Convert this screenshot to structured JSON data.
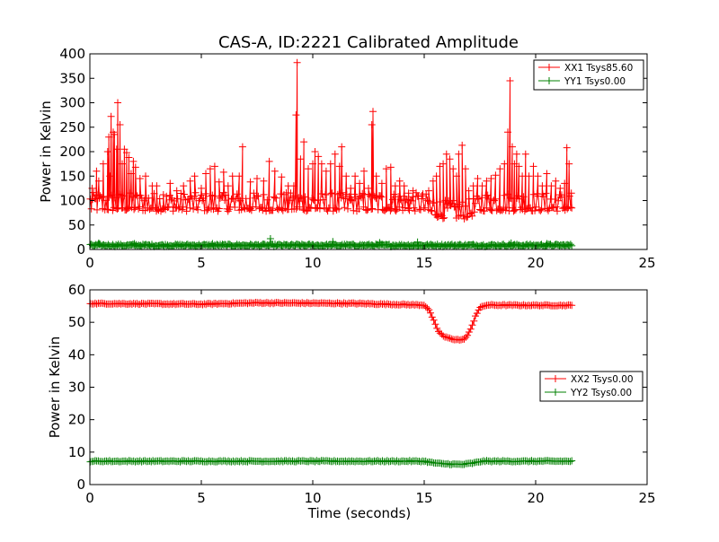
{
  "figure": {
    "title": "CAS-A, ID:2221 Calibrated Amplitude"
  },
  "chart_data": [
    {
      "type": "line",
      "title": "CAS-A, ID:2221 Calibrated Amplitude",
      "xlabel": "",
      "ylabel": "Power in Kelvin",
      "xlim": [
        0,
        25
      ],
      "ylim": [
        0,
        400
      ],
      "xticks": [
        0,
        5,
        10,
        15,
        20,
        25
      ],
      "yticks": [
        0,
        50,
        100,
        150,
        200,
        250,
        300,
        350,
        400
      ],
      "grid": false,
      "legend": "top-right",
      "marker": "plus",
      "series": [
        {
          "name": "XX1 Tsys85.60",
          "color": "#ff0000",
          "baseline": [
            [
              0,
              78
            ],
            [
              15,
              78
            ],
            [
              15.5,
              66
            ],
            [
              16,
              62
            ],
            [
              16.8,
              62
            ],
            [
              17.3,
              70
            ],
            [
              17.6,
              78
            ],
            [
              21.6,
              78
            ]
          ],
          "spikes": [
            [
              0.1,
              125
            ],
            [
              0.3,
              160
            ],
            [
              0.4,
              140
            ],
            [
              0.6,
              175
            ],
            [
              0.8,
              200
            ],
            [
              0.85,
              230
            ],
            [
              0.9,
              150
            ],
            [
              0.95,
              272
            ],
            [
              1.05,
              240
            ],
            [
              1.1,
              235
            ],
            [
              1.2,
              205
            ],
            [
              1.25,
              300
            ],
            [
              1.35,
              255
            ],
            [
              1.45,
              175
            ],
            [
              1.55,
              205
            ],
            [
              1.65,
              198
            ],
            [
              1.75,
              188
            ],
            [
              1.85,
              155
            ],
            [
              1.95,
              180
            ],
            [
              2.05,
              168
            ],
            [
              2.25,
              145
            ],
            [
              2.5,
              150
            ],
            [
              2.8,
              130
            ],
            [
              3.0,
              130
            ],
            [
              3.3,
              112
            ],
            [
              3.6,
              135
            ],
            [
              3.9,
              120
            ],
            [
              4.2,
              130
            ],
            [
              4.5,
              140
            ],
            [
              4.7,
              150
            ],
            [
              5.0,
              125
            ],
            [
              5.2,
              155
            ],
            [
              5.4,
              165
            ],
            [
              5.6,
              170
            ],
            [
              5.8,
              138
            ],
            [
              6.0,
              158
            ],
            [
              6.2,
              130
            ],
            [
              6.4,
              150
            ],
            [
              6.7,
              150
            ],
            [
              6.85,
              210
            ],
            [
              7.2,
              138
            ],
            [
              7.5,
              145
            ],
            [
              7.8,
              140
            ],
            [
              8.05,
              180
            ],
            [
              8.3,
              160
            ],
            [
              8.6,
              148
            ],
            [
              8.9,
              130
            ],
            [
              9.15,
              130
            ],
            [
              9.25,
              275
            ],
            [
              9.3,
              382
            ],
            [
              9.45,
              185
            ],
            [
              9.6,
              220
            ],
            [
              9.8,
              165
            ],
            [
              10.0,
              175
            ],
            [
              10.1,
              200
            ],
            [
              10.25,
              190
            ],
            [
              10.4,
              175
            ],
            [
              10.6,
              160
            ],
            [
              10.8,
              175
            ],
            [
              11.0,
              195
            ],
            [
              11.2,
              170
            ],
            [
              11.3,
              210
            ],
            [
              11.5,
              150
            ],
            [
              11.7,
              125
            ],
            [
              11.9,
              150
            ],
            [
              12.1,
              135
            ],
            [
              12.3,
              160
            ],
            [
              12.5,
              125
            ],
            [
              12.65,
              255
            ],
            [
              12.7,
              282
            ],
            [
              12.85,
              150
            ],
            [
              13.1,
              135
            ],
            [
              13.3,
              165
            ],
            [
              13.5,
              168
            ],
            [
              13.7,
              130
            ],
            [
              13.9,
              140
            ],
            [
              14.1,
              130
            ],
            [
              14.3,
              115
            ],
            [
              14.5,
              120
            ],
            [
              14.9,
              110
            ],
            [
              15.2,
              120
            ],
            [
              15.4,
              140
            ],
            [
              15.55,
              150
            ],
            [
              15.7,
              170
            ],
            [
              15.85,
              175
            ],
            [
              16.0,
              195
            ],
            [
              16.15,
              185
            ],
            [
              16.3,
              165
            ],
            [
              16.45,
              150
            ],
            [
              16.55,
              195
            ],
            [
              16.7,
              213
            ],
            [
              16.85,
              165
            ],
            [
              17.0,
              120
            ],
            [
              17.2,
              130
            ],
            [
              17.4,
              145
            ],
            [
              17.6,
              130
            ],
            [
              17.8,
              140
            ],
            [
              18.0,
              145
            ],
            [
              18.2,
              152
            ],
            [
              18.4,
              165
            ],
            [
              18.6,
              175
            ],
            [
              18.75,
              240
            ],
            [
              18.85,
              345
            ],
            [
              18.95,
              210
            ],
            [
              19.05,
              175
            ],
            [
              19.15,
              195
            ],
            [
              19.25,
              170
            ],
            [
              19.4,
              150
            ],
            [
              19.55,
              195
            ],
            [
              19.7,
              150
            ],
            [
              19.9,
              170
            ],
            [
              20.1,
              150
            ],
            [
              20.3,
              130
            ],
            [
              20.5,
              155
            ],
            [
              20.7,
              130
            ],
            [
              20.9,
              140
            ],
            [
              21.1,
              125
            ],
            [
              21.3,
              135
            ],
            [
              21.4,
              208
            ],
            [
              21.5,
              175
            ],
            [
              21.6,
              115
            ]
          ]
        },
        {
          "name": "YY1 Tsys0.00",
          "color": "#008000",
          "baseline": [
            [
              0,
              8
            ],
            [
              21.6,
              8
            ]
          ],
          "spikes": [
            [
              0.4,
              13
            ],
            [
              2.0,
              12
            ],
            [
              5.5,
              12
            ],
            [
              8.1,
              22
            ],
            [
              10.9,
              16
            ],
            [
              13.0,
              14
            ],
            [
              14.7,
              15
            ],
            [
              18.9,
              13
            ],
            [
              20.5,
              12
            ]
          ]
        }
      ]
    },
    {
      "type": "line",
      "title": "",
      "xlabel": "Time (seconds)",
      "ylabel": "Power in Kelvin",
      "xlim": [
        0,
        25
      ],
      "ylim": [
        0,
        60
      ],
      "xticks": [
        0,
        5,
        10,
        15,
        20,
        25
      ],
      "yticks": [
        0,
        10,
        20,
        30,
        40,
        50,
        60
      ],
      "grid": false,
      "legend": "center-right",
      "marker": "plus",
      "series": [
        {
          "name": "XX2 Tsys0.00",
          "color": "#ff0000",
          "curve": [
            [
              0,
              55.8
            ],
            [
              5,
              55.6
            ],
            [
              7.5,
              56
            ],
            [
              12,
              55.8
            ],
            [
              15,
              55.3
            ],
            [
              15.2,
              54
            ],
            [
              15.4,
              51
            ],
            [
              15.6,
              47.5
            ],
            [
              15.9,
              45.5
            ],
            [
              16.3,
              44.8
            ],
            [
              16.7,
              44.5
            ],
            [
              16.9,
              45.5
            ],
            [
              17.1,
              48
            ],
            [
              17.3,
              52
            ],
            [
              17.5,
              54.5
            ],
            [
              17.8,
              55.3
            ],
            [
              21.6,
              55.2
            ]
          ]
        },
        {
          "name": "YY2 Tsys0.00",
          "color": "#008000",
          "curve": [
            [
              0,
              7.2
            ],
            [
              15,
              7.2
            ],
            [
              15.3,
              6.8
            ],
            [
              15.8,
              6.4
            ],
            [
              16.7,
              6.2
            ],
            [
              17.2,
              6.6
            ],
            [
              17.6,
              7.2
            ],
            [
              21.6,
              7.2
            ]
          ]
        }
      ]
    }
  ]
}
